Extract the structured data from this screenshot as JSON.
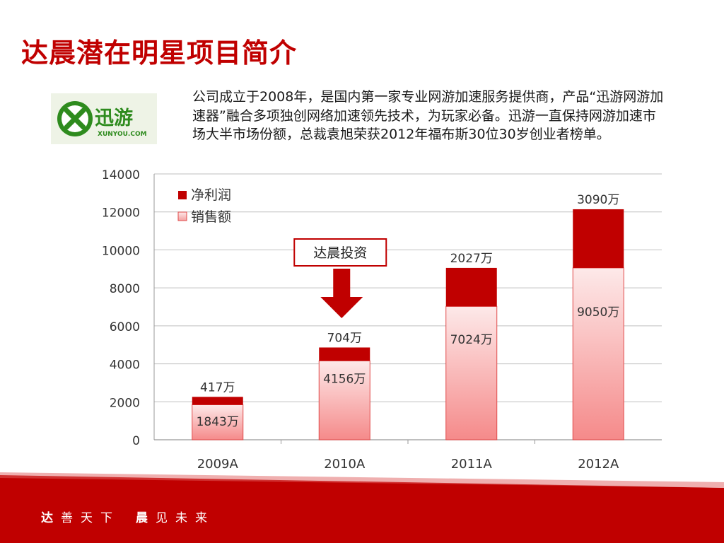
{
  "slide": {
    "title": "达晨潜在明星项目简介",
    "description": "公司成立于2008年，是国内第一家专业网游加速服务提供商，产品“迅游网游加速器”融合多项独创网络加速领先技术，为玩家必备。迅游一直保持网游加速市场大半市场份额，总裁袁旭荣获2012年福布斯30位30岁创业者榜单。",
    "logo": {
      "text_cn": "迅游",
      "text_en": "XUNYOU.COM",
      "accent": "#2e8b1e"
    },
    "callout": "达晨投资",
    "footer": {
      "part1_bold": "达",
      "part1_rest": "善天下",
      "part2_bold": "晨",
      "part2_rest": "见未来"
    }
  },
  "colors": {
    "brand_red": "#c00000",
    "profit_fill": "#c00000",
    "sales_top": "#fde8e8",
    "sales_bottom": "#f58a8a",
    "grid": "#bfbfbf"
  },
  "chart_data": {
    "type": "bar",
    "stacked": true,
    "categories": [
      "2009A",
      "2010A",
      "2011A",
      "2012A"
    ],
    "series": [
      {
        "name": "销售额",
        "values": [
          1843,
          4156,
          7024,
          9050
        ],
        "labels": [
          "1843万",
          "4156万",
          "7024万",
          "9050万"
        ]
      },
      {
        "name": "净利润",
        "values": [
          417,
          704,
          2027,
          3090
        ],
        "labels": [
          "417万",
          "704万",
          "2027万",
          "3090万"
        ]
      }
    ],
    "ylim": [
      0,
      14000
    ],
    "yticks": [
      0,
      2000,
      4000,
      6000,
      8000,
      10000,
      12000,
      14000
    ],
    "grid": true,
    "legend": "top-left",
    "legend_entries": [
      "净利润",
      "销售额"
    ],
    "annotation": {
      "text": "达晨投资",
      "target_category": "2010A"
    }
  }
}
